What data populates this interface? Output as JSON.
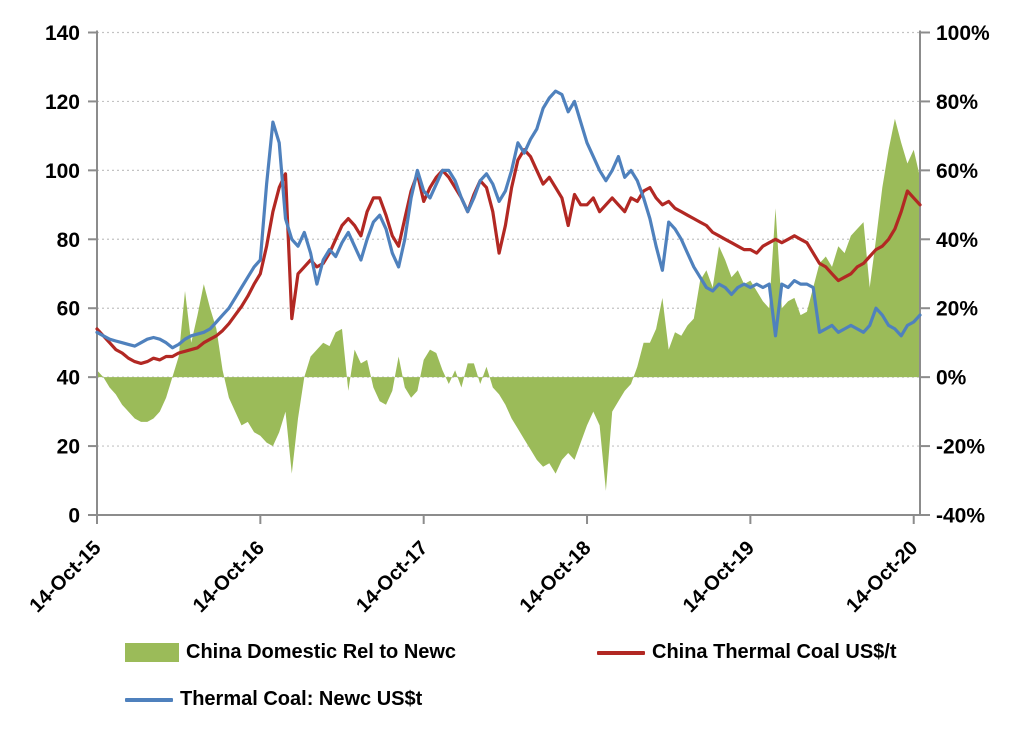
{
  "chart_data": {
    "type": "combo",
    "title": "",
    "sampling": "biweekly points, index 0 = 14-Oct-15, index 131 = right edge (~Nov-2020)",
    "x_axis": {
      "tick_labels": [
        "14-Oct-15",
        "14-Oct-16",
        "14-Oct-17",
        "14-Oct-18",
        "14-Oct-19",
        "14-Oct-20"
      ],
      "tick_indices": [
        0,
        26,
        52,
        78,
        104,
        130
      ],
      "label_rotation_deg": -45
    },
    "left_axis": {
      "min": 0,
      "max": 140,
      "step": 20,
      "tick_labels": [
        "0",
        "20",
        "40",
        "60",
        "80",
        "100",
        "120",
        "140"
      ]
    },
    "right_axis": {
      "min": -40,
      "max": 100,
      "step": 20,
      "tick_labels": [
        "-40%",
        "-20%",
        "0%",
        "20%",
        "40%",
        "60%",
        "80%",
        "100%"
      ]
    },
    "grid": {
      "horizontal": true,
      "style": "dotted",
      "color": "#c3c3c3"
    },
    "axis_color": "#8c8c8c",
    "text_color": "#000000",
    "legend_position": "bottom",
    "series": [
      {
        "name": "China Domestic Rel to Newc",
        "type": "area",
        "axis": "right",
        "unit": "%",
        "color": "#9bbb59",
        "values": [
          2,
          0,
          -3,
          -5,
          -8,
          -10,
          -12,
          -13,
          -13,
          -12,
          -10,
          -6,
          0,
          6,
          25,
          10,
          18,
          27,
          20,
          14,
          2,
          -6,
          -10,
          -14,
          -13,
          -16,
          -17,
          -19,
          -20,
          -16,
          -10,
          -28,
          -12,
          0,
          6,
          8,
          10,
          9,
          13,
          14,
          -4,
          8,
          4,
          5,
          -3,
          -7,
          -8,
          -4,
          6,
          -3,
          -6,
          -4,
          5,
          8,
          7,
          2,
          -2,
          2,
          -3,
          4,
          4,
          -2,
          3,
          -3,
          -5,
          -8,
          -12,
          -15,
          -18,
          -21,
          -24,
          -26,
          -25,
          -28,
          -24,
          -22,
          -24,
          -19,
          -14,
          -10,
          -14,
          -33,
          -10,
          -7,
          -4,
          -2,
          3,
          10,
          10,
          14,
          23,
          8,
          13,
          12,
          15,
          17,
          28,
          31,
          26,
          38,
          34,
          29,
          31,
          27,
          28,
          25,
          22,
          20,
          49,
          20,
          22,
          23,
          18,
          19,
          26,
          33,
          35,
          32,
          38,
          36,
          41,
          43,
          45,
          26,
          40,
          55,
          66,
          75,
          68,
          62,
          66,
          58
        ]
      },
      {
        "name": "China Thermal Coal US$/t",
        "type": "line",
        "axis": "left",
        "unit": "US$/t",
        "color": "#b22823",
        "values": [
          54,
          52,
          50,
          48,
          47,
          45.5,
          44.5,
          44,
          44.5,
          45.5,
          45,
          46,
          46,
          47,
          47.5,
          48,
          48.5,
          50,
          51,
          52,
          53.5,
          55.5,
          58,
          60.5,
          63.5,
          67,
          70,
          78,
          88,
          95,
          99,
          57,
          70,
          72,
          74,
          72,
          73,
          76,
          80,
          84,
          86,
          84,
          81,
          88,
          92,
          92,
          87,
          81,
          78,
          86,
          94,
          99,
          91,
          95,
          98,
          100,
          98,
          95,
          92,
          88,
          93,
          97,
          95,
          88,
          76,
          84,
          95,
          103,
          106,
          104,
          100,
          96,
          98,
          95,
          92,
          84,
          93,
          90,
          90,
          92,
          88,
          90,
          92,
          90,
          88,
          92,
          91,
          94,
          95,
          92,
          90,
          91,
          89,
          88,
          87,
          86,
          85,
          84,
          82,
          81,
          80,
          79,
          78,
          77,
          77,
          76,
          78,
          79,
          80,
          79,
          80,
          81,
          80,
          79,
          76,
          73,
          72,
          70,
          68,
          69,
          70,
          72,
          73,
          75,
          77,
          78,
          80,
          83,
          88,
          94,
          92,
          90
        ]
      },
      {
        "name": "Thermal Coal: Newc US$t",
        "type": "line",
        "axis": "left",
        "unit": "US$/t",
        "color": "#4f81bd",
        "values": [
          53,
          52,
          51,
          50.5,
          50,
          49.5,
          49,
          50,
          51,
          51.5,
          51,
          50,
          48.5,
          49.5,
          51,
          52,
          52.5,
          53,
          54,
          56,
          58,
          60,
          63,
          66,
          69,
          72,
          74,
          96,
          114,
          108,
          86,
          80,
          78,
          82,
          76,
          67,
          74,
          77,
          75,
          79,
          82,
          78,
          74,
          80,
          85,
          87,
          83,
          76,
          72,
          80,
          92,
          100,
          94,
          92,
          96,
          100,
          100,
          97,
          92,
          88,
          92,
          97,
          99,
          96,
          91,
          94,
          100,
          108,
          105,
          109,
          112,
          118,
          121,
          123,
          122,
          117,
          120,
          114,
          108,
          104,
          100,
          97,
          100,
          104,
          98,
          100,
          97,
          92,
          86,
          78,
          71,
          85,
          83,
          80,
          76,
          72,
          69,
          66,
          65,
          67,
          66,
          64,
          66,
          67,
          66,
          67,
          66,
          67,
          52,
          67,
          66,
          68,
          67,
          67,
          66,
          53,
          54,
          55,
          53,
          54,
          55,
          54,
          53,
          55,
          60,
          58,
          55,
          54,
          52,
          55,
          56,
          58
        ]
      }
    ]
  },
  "legend": {
    "items": [
      {
        "label": "China Domestic Rel to Newc",
        "swatch": "area",
        "color": "#9bbb59"
      },
      {
        "label": "China Thermal Coal US$/t",
        "swatch": "line",
        "color": "#b22823"
      },
      {
        "label": "Thermal Coal: Newc US$t",
        "swatch": "line",
        "color": "#4f81bd"
      }
    ]
  }
}
